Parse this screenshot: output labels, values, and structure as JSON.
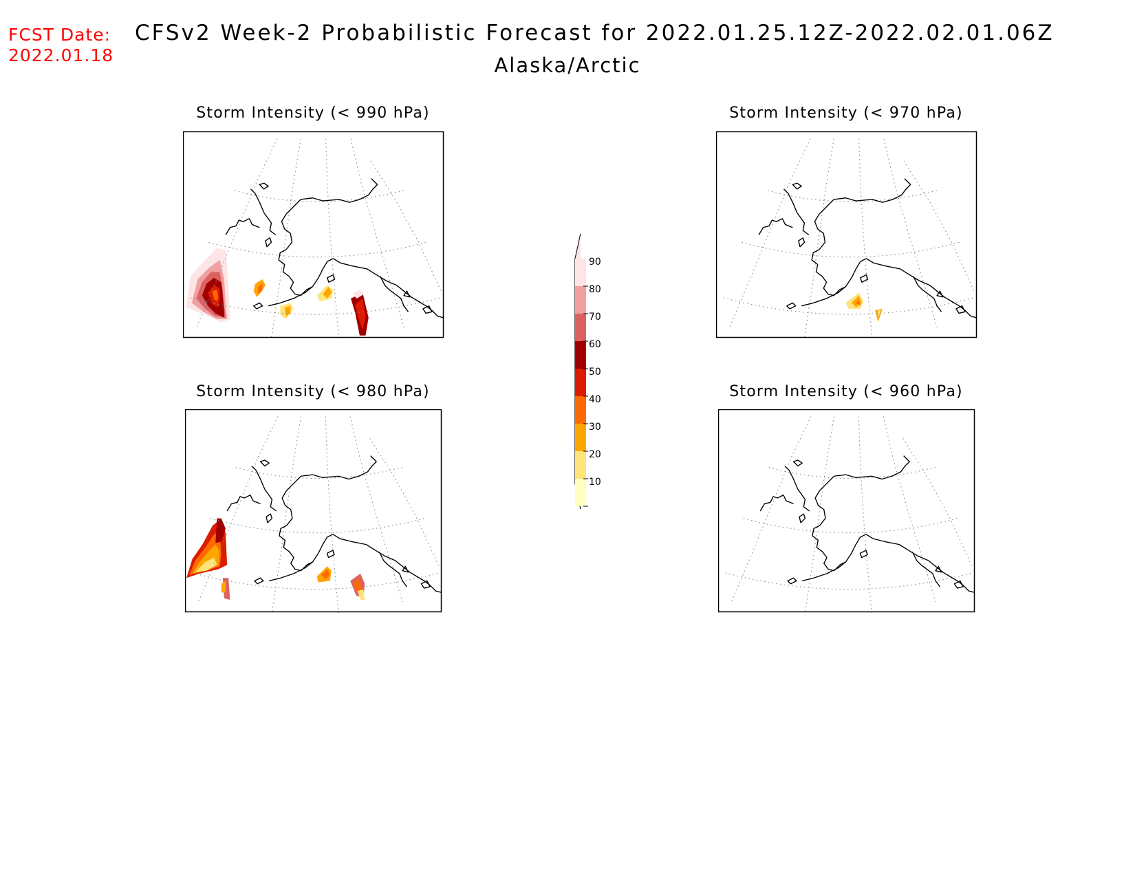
{
  "header": {
    "fcst_label": "FCST Date:",
    "fcst_date": "2022.01.18",
    "title": "CFSv2 Week-2 Probabilistic Forecast for 2022.01.25.12Z-2022.02.01.06Z",
    "subtitle": "Alaska/Arctic"
  },
  "panels": [
    {
      "id": "p990",
      "title": "Storm Intensity (< 990 hPa)"
    },
    {
      "id": "p970",
      "title": "Storm Intensity (< 970 hPa)"
    },
    {
      "id": "p980",
      "title": "Storm Intensity (< 980 hPa)"
    },
    {
      "id": "p960",
      "title": "Storm Intensity (< 960 hPa)"
    }
  ],
  "colorbar": {
    "labels": [
      "90",
      "80",
      "70",
      "60",
      "50",
      "40",
      "30",
      "20",
      "10"
    ],
    "colors": [
      "#fde5e5",
      "#f0a0a0",
      "#dc6262",
      "#a00000",
      "#dc1c00",
      "#ff6a00",
      "#ffa500",
      "#ffe47a",
      "#ffffc0"
    ]
  },
  "colors": {
    "date_text": "#ff0000",
    "coast": "#000000",
    "grid": "#888888"
  }
}
